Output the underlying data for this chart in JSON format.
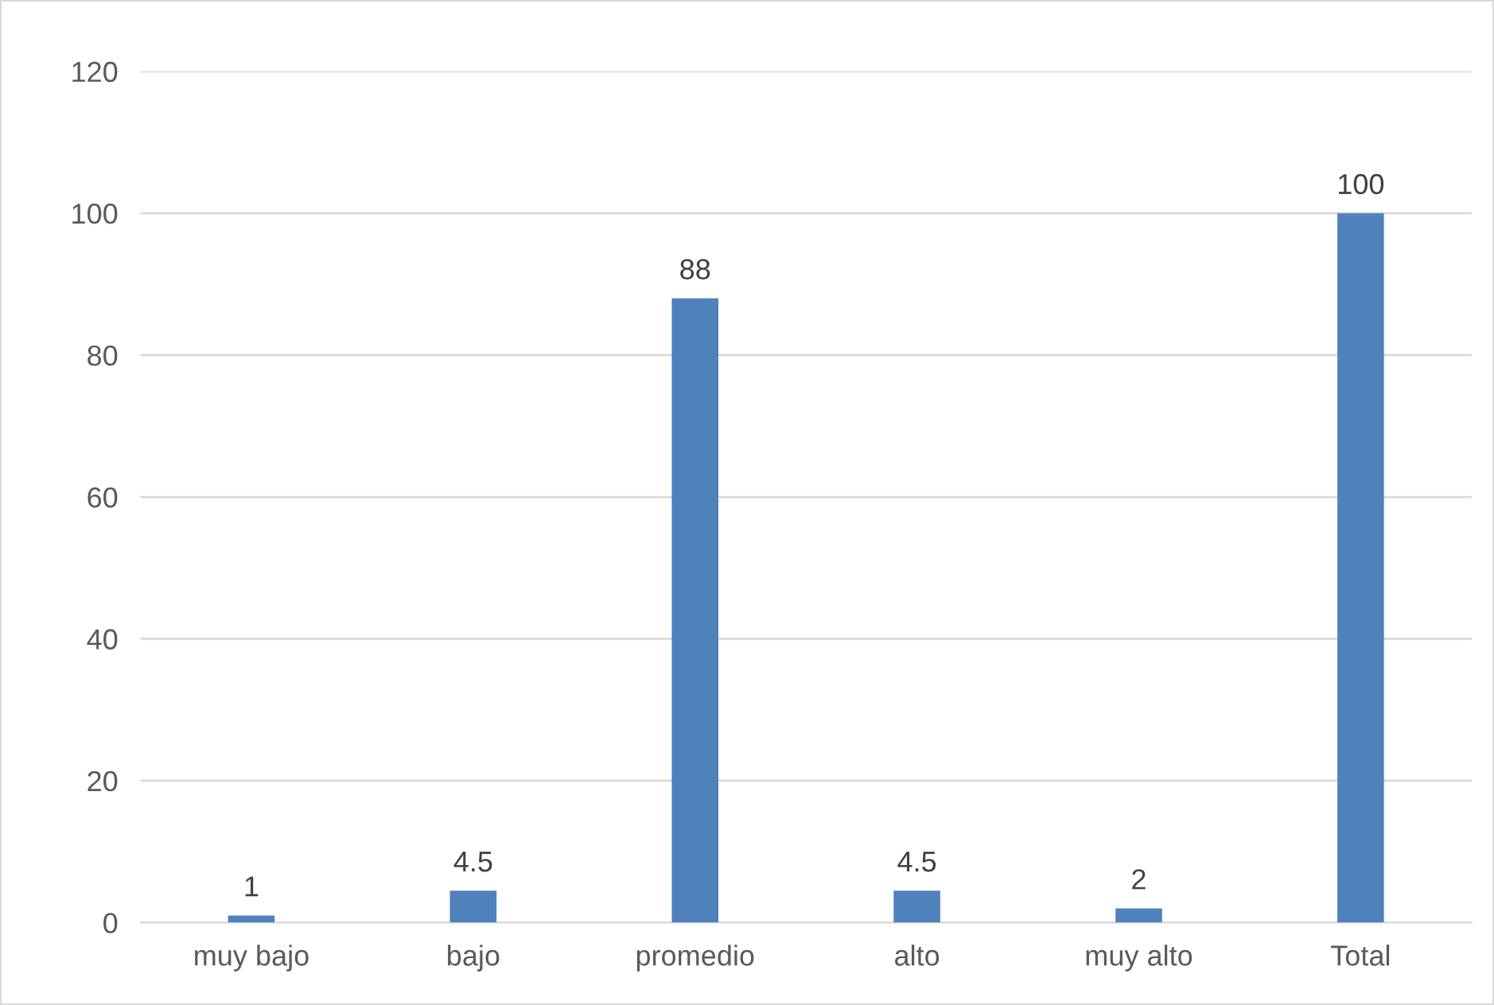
{
  "chart_data": {
    "type": "bar",
    "categories": [
      "muy bajo",
      "bajo",
      "promedio",
      "alto",
      "muy alto",
      "Total"
    ],
    "values": [
      1,
      4.5,
      88,
      4.5,
      2,
      100
    ],
    "color": "#4f81bd",
    "ylim": [
      0,
      120
    ],
    "yticks": [
      0,
      20,
      40,
      60,
      80,
      100,
      120
    ],
    "grid": "y",
    "data_labels": true
  }
}
